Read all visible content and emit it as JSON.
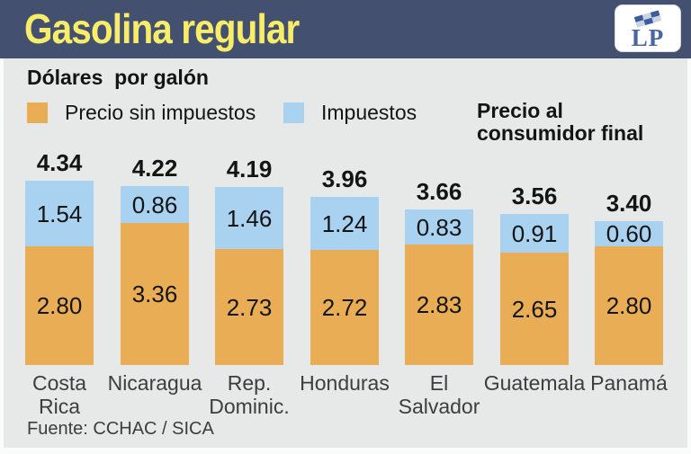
{
  "header": {
    "title": "Gasolina regular",
    "logo_text": "LP",
    "bg_color": "#44506f",
    "title_color": "#f8ed68"
  },
  "subtitle": "Dólares  por galón",
  "legend": {
    "items": [
      {
        "label": "Precio sin impuestos",
        "color": "#e9ae55"
      },
      {
        "label": "Impuestos",
        "color": "#a8d2f0"
      }
    ],
    "final_price_label": "Precio al\nconsumidor final"
  },
  "chart_data": {
    "type": "bar",
    "stacked": true,
    "title": "Gasolina regular",
    "subtitle": "Dólares por galón",
    "ylabel": "Dólares por galón",
    "xlabel": "",
    "grid": false,
    "legend_position": "top",
    "categories": [
      "Costa\nRica",
      "Nicaragua",
      "Rep.\nDominic.",
      "Honduras",
      "El\nSalvador",
      "Guatemala",
      "Panamá"
    ],
    "series": [
      {
        "name": "Precio sin impuestos",
        "color": "#e9ae55",
        "values": [
          2.8,
          3.36,
          2.73,
          2.72,
          2.83,
          2.65,
          2.8
        ]
      },
      {
        "name": "Impuestos",
        "color": "#a8d2f0",
        "values": [
          1.54,
          0.86,
          1.46,
          1.24,
          0.83,
          0.91,
          0.6
        ]
      }
    ],
    "totals": [
      4.34,
      4.22,
      4.19,
      3.96,
      3.66,
      3.56,
      3.4
    ],
    "totals_label": "Precio al consumidor final",
    "ylim": [
      0,
      4.6
    ],
    "value_format": "0.00"
  },
  "footer": {
    "source": "Fuente: CCHAC / SICA"
  }
}
